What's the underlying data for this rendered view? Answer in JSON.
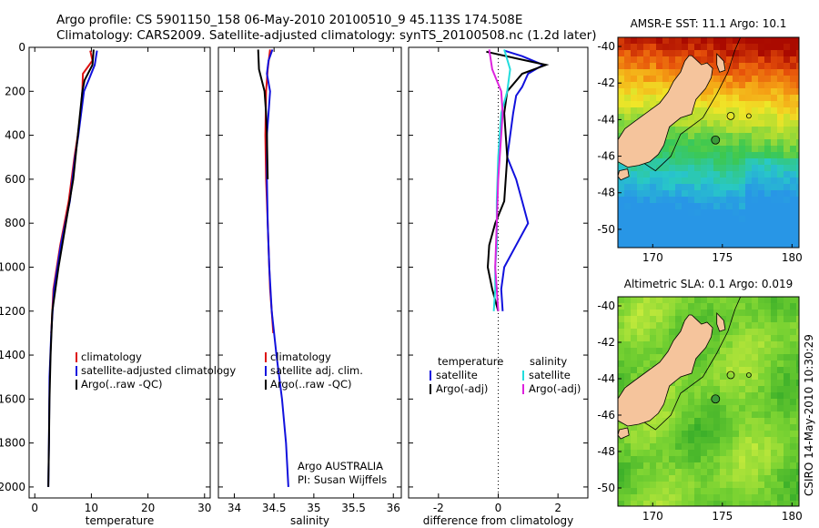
{
  "figure": {
    "title_line1": "Argo profile: CS 5901150_158 06-May-2010 20100510_9 45.113S 174.508E",
    "title_line2": "Climatology: CARS2009. Satellite-adjusted climatology: synTS_20100508.nc (1.2d later)",
    "side_label": "CSIRO 14-May-2010 10:30:29",
    "credit_line1": "Argo AUSTRALIA",
    "credit_line2": "PI: Susan Wijffels"
  },
  "colors": {
    "climatology": "#dd1111",
    "satellite": "#1111dd",
    "argo": "#000000",
    "sat_salinity": "#22dddd",
    "argo_salinity": "#dd22dd",
    "land": "#f5c49c"
  },
  "chart_data": [
    {
      "type": "line",
      "xlabel": "temperature",
      "ylabel": "",
      "xlim": [
        -1,
        31
      ],
      "ylim": [
        2050,
        0
      ],
      "xticks": [
        0,
        10,
        20,
        30
      ],
      "yticks": [
        0,
        200,
        400,
        600,
        800,
        1000,
        1200,
        1400,
        1600,
        1800,
        2000
      ],
      "legend": [
        "climatology",
        "satellite-adjusted climatology",
        "Argo(..raw -QC)"
      ],
      "series": [
        {
          "name": "climatology",
          "color_key": "climatology",
          "x": [
            9.8,
            10.2,
            8.5,
            8.4,
            8.1,
            7.6,
            7.0,
            6.0,
            4.5,
            3.3,
            2.9
          ],
          "y": [
            15,
            60,
            120,
            200,
            300,
            400,
            500,
            700,
            900,
            1100,
            1300
          ]
        },
        {
          "name": "satellite-adjusted climatology",
          "color_key": "satellite",
          "x": [
            11.0,
            10.6,
            9.5,
            8.7,
            8.2,
            7.7,
            7.1,
            6.2,
            4.6,
            3.4,
            2.9,
            2.6,
            2.5,
            2.4
          ],
          "y": [
            15,
            80,
            150,
            200,
            300,
            400,
            500,
            700,
            900,
            1100,
            1300,
            1500,
            1800,
            2000
          ]
        },
        {
          "name": "Argo(..raw -QC)",
          "color_key": "argo",
          "x": [
            10.4,
            10.2,
            8.8,
            8.4,
            7.6,
            6.8,
            5.5,
            4.2,
            3.1,
            2.8,
            2.6,
            2.5,
            2.4
          ],
          "y": [
            10,
            80,
            150,
            200,
            400,
            600,
            800,
            1000,
            1200,
            1400,
            1600,
            1800,
            2000
          ]
        }
      ]
    },
    {
      "type": "line",
      "xlabel": "salinity",
      "ylabel": "",
      "xlim": [
        33.8,
        36.1
      ],
      "ylim": [
        2050,
        0
      ],
      "xticks": [
        34,
        34.5,
        35,
        35.5,
        36
      ],
      "legend": [
        "climatology",
        "satellite adj. clim.",
        "Argo(..raw -QC)"
      ],
      "series": [
        {
          "name": "climatology",
          "color_key": "climatology",
          "x": [
            34.45,
            34.42,
            34.4,
            34.39,
            34.4,
            34.42,
            34.44,
            34.45,
            34.47,
            34.49
          ],
          "y": [
            10,
            100,
            200,
            400,
            600,
            800,
            1000,
            1100,
            1200,
            1300
          ]
        },
        {
          "name": "satellite adj. clim.",
          "color_key": "satellite",
          "x": [
            34.48,
            34.43,
            34.41,
            34.45,
            34.43,
            34.41,
            34.41,
            34.42,
            34.44,
            34.47,
            34.53,
            34.6,
            34.65,
            34.68
          ],
          "y": [
            10,
            60,
            120,
            200,
            300,
            400,
            600,
            800,
            1000,
            1200,
            1400,
            1600,
            1800,
            2000
          ]
        },
        {
          "name": "Argo(..raw -QC)",
          "color_key": "argo",
          "x": [
            34.3,
            34.31,
            34.38,
            34.4,
            34.41,
            34.42
          ],
          "y": [
            10,
            100,
            200,
            300,
            400,
            600
          ]
        }
      ]
    },
    {
      "type": "line",
      "xlabel": "difference from climatology",
      "ylabel": "",
      "xlim": [
        -3,
        3
      ],
      "ylim": [
        2050,
        0
      ],
      "xticks": [
        -2,
        0,
        2
      ],
      "zero_line": 0,
      "legend_left": {
        "heading": "temperature",
        "items": [
          "satellite",
          "Argo(-adj)"
        ]
      },
      "legend_right": {
        "heading": "salinity",
        "items": [
          "satellite",
          "Argo(-adj)"
        ]
      },
      "series": [
        {
          "name": "satellite",
          "group": "temperature",
          "color_key": "satellite",
          "x": [
            0.2,
            0.8,
            1.5,
            1.0,
            0.8,
            0.6,
            0.5,
            0.3,
            0.6,
            0.8,
            1.0,
            0.6,
            0.2,
            0.1,
            0.15
          ],
          "y": [
            15,
            40,
            80,
            120,
            180,
            220,
            300,
            500,
            600,
            700,
            800,
            900,
            1000,
            1100,
            1200
          ]
        },
        {
          "name": "Argo(-adj)",
          "group": "temperature",
          "color_key": "argo",
          "x": [
            -0.4,
            0.6,
            1.6,
            0.8,
            0.3,
            0.2,
            0.3,
            0.2,
            -0.1,
            -0.3,
            -0.35,
            -0.2,
            0.0
          ],
          "y": [
            20,
            50,
            80,
            120,
            200,
            300,
            500,
            700,
            800,
            900,
            1000,
            1100,
            1200
          ]
        },
        {
          "name": "satellite",
          "group": "salinity",
          "color_key": "sat_salinity",
          "x": [
            0.2,
            0.4,
            0.3,
            0.1,
            0.0,
            -0.05,
            -0.05,
            -0.1,
            -0.1,
            -0.15
          ],
          "y": [
            10,
            100,
            200,
            300,
            500,
            700,
            900,
            1000,
            1100,
            1200
          ]
        },
        {
          "name": "Argo(-adj)",
          "group": "salinity",
          "color_key": "argo_salinity",
          "x": [
            -0.3,
            -0.2,
            0.1,
            0.15,
            0.0,
            -0.05,
            -0.1,
            -0.05,
            0.0
          ],
          "y": [
            10,
            100,
            200,
            300,
            600,
            800,
            1000,
            1100,
            1200
          ]
        }
      ]
    },
    {
      "type": "heatmap",
      "title": "AMSR-E SST: 11.1  Argo: 10.1",
      "xlim": [
        167.5,
        180.5
      ],
      "ylim": [
        -51,
        -39.5
      ],
      "xticks": [
        170,
        175,
        180
      ],
      "yticks": [
        -40,
        -42,
        -44,
        -46,
        -48,
        -50
      ],
      "profile_lon": 174.508,
      "profile_lat": -45.113,
      "legend": "none"
    },
    {
      "type": "heatmap",
      "title": "Altimetric SLA: 0.1  Argo: 0.019",
      "xlim": [
        167.5,
        180.5
      ],
      "ylim": [
        -51,
        -39.5
      ],
      "xticks": [
        170,
        175,
        180
      ],
      "yticks": [
        -40,
        -42,
        -44,
        -46,
        -48,
        -50
      ],
      "profile_lon": 174.508,
      "profile_lat": -45.113,
      "legend": "none"
    }
  ]
}
